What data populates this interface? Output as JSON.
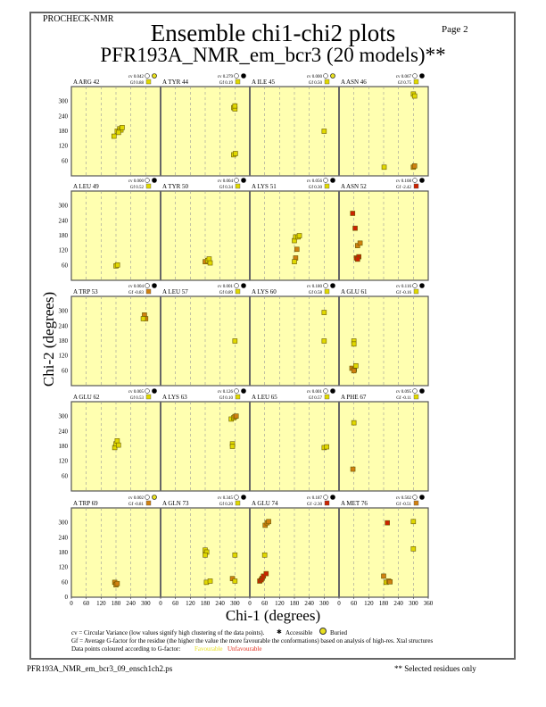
{
  "header": {
    "program": "PROCHECK-NMR",
    "page": "Page  2",
    "title": "Ensemble chi1-chi2 plots",
    "subtitle": "PFR193A_NMR_em_bcr3 (20 models)**"
  },
  "footer": {
    "filename": "PFR193A_NMR_em_bcr3_09_ensch1ch2.ps",
    "note": "** Selected residues only"
  },
  "legend": {
    "cv": "cv = Circular Variance (low values signify high clustering of the data points).",
    "accessible": "Accessible",
    "buried": "Buried",
    "gf": "Gf = Average G-factor for the residue (the higher the value the more favourable the conformations) based on analysis of high-res. Xtal structures",
    "colour": "Data points coloured according to G-factor:",
    "fav": "Favourable",
    "unfav": "Unfavourable"
  },
  "colors": {
    "y": "#e0d800",
    "o": "#d08010",
    "r": "#cc2200",
    "bg": "#ffffb0",
    "fav": "#e8e020",
    "unfav": "#e03020"
  },
  "chart_data": {
    "type": "scatter",
    "xlabel": "Chi-1 (degrees)",
    "ylabel": "Chi-2 (degrees)",
    "xlim": [
      0,
      360
    ],
    "ylim": [
      0,
      360
    ],
    "xticks": [
      "0",
      "60",
      "120",
      "180",
      "240",
      "300",
      "360"
    ],
    "yticks": [
      "0",
      "60",
      "120",
      "180",
      "240",
      "300"
    ],
    "panels": [
      {
        "label": "A ARG 42",
        "cv": "cv 0.042",
        "gf": "Gf 0.88",
        "gfc": "y",
        "buried": true,
        "pts": [
          [
            172,
            160,
            "y"
          ],
          [
            185,
            180,
            "y"
          ],
          [
            195,
            190,
            "y"
          ],
          [
            200,
            185,
            "y"
          ],
          [
            190,
            175,
            "y"
          ],
          [
            205,
            195,
            "y"
          ]
        ]
      },
      {
        "label": "A TYR 44",
        "cv": "cv 0.279",
        "gf": "Gf 0.19",
        "gfc": "y",
        "buried": false,
        "pts": [
          [
            295,
            275,
            "y"
          ],
          [
            300,
            270,
            "y"
          ],
          [
            300,
            282,
            "y"
          ],
          [
            295,
            85,
            "y"
          ],
          [
            302,
            90,
            "y"
          ]
        ]
      },
      {
        "label": "A ILE 45",
        "cv": "cv 0.000",
        "gf": "Gf 0.50",
        "gfc": "y",
        "buried": true,
        "pts": [
          [
            300,
            180,
            "y"
          ]
        ]
      },
      {
        "label": "A ASN 46",
        "cv": "cv 0.067",
        "gf": "Gf 0.75",
        "gfc": "y",
        "buried": false,
        "pts": [
          [
            300,
            330,
            "y"
          ],
          [
            305,
            322,
            "y"
          ],
          [
            182,
            35,
            "y"
          ],
          [
            300,
            35,
            "o"
          ],
          [
            305,
            40,
            "o"
          ]
        ]
      },
      {
        "label": "A LEU 49",
        "cv": "cv 0.000",
        "gf": "Gf 0.52",
        "gfc": "y",
        "buried": false,
        "pts": [
          [
            180,
            58,
            "y"
          ],
          [
            186,
            62,
            "y"
          ]
        ]
      },
      {
        "label": "A TYR 50",
        "cv": "cv 0.004",
        "gf": "Gf 0.34",
        "gfc": "y",
        "buried": false,
        "pts": [
          [
            180,
            75,
            "o"
          ],
          [
            190,
            80,
            "y"
          ],
          [
            196,
            86,
            "y"
          ],
          [
            200,
            70,
            "y"
          ]
        ]
      },
      {
        "label": "A LYS 51",
        "cv": "cv 0.056",
        "gf": "Gf 0.30",
        "gfc": "y",
        "buried": false,
        "pts": [
          [
            180,
            160,
            "y"
          ],
          [
            185,
            175,
            "y"
          ],
          [
            195,
            175,
            "y"
          ],
          [
            200,
            180,
            "y"
          ],
          [
            190,
            125,
            "o"
          ],
          [
            185,
            90,
            "o"
          ],
          [
            180,
            75,
            "y"
          ]
        ]
      },
      {
        "label": "A ASN 52",
        "cv": "cv 0.108",
        "gf": "Gf -2.42",
        "gfc": "r",
        "buried": false,
        "pts": [
          [
            55,
            270,
            "r"
          ],
          [
            65,
            210,
            "r"
          ],
          [
            75,
            140,
            "o"
          ],
          [
            85,
            150,
            "o"
          ],
          [
            70,
            90,
            "r"
          ],
          [
            80,
            95,
            "r"
          ],
          [
            75,
            85,
            "r"
          ]
        ]
      },
      {
        "label": "A TRP 53",
        "cv": "cv 0.004",
        "gf": "Gf -0.83",
        "gfc": "o",
        "buried": false,
        "pts": [
          [
            295,
            285,
            "o"
          ],
          [
            300,
            270,
            "o"
          ],
          [
            290,
            270,
            "y"
          ]
        ]
      },
      {
        "label": "A LEU 57",
        "cv": "cv 0.001",
        "gf": "Gf 0.89",
        "gfc": "y",
        "buried": false,
        "pts": [
          [
            300,
            180,
            "y"
          ]
        ]
      },
      {
        "label": "A LYS 60",
        "cv": "cv 0.180",
        "gf": "Gf 0.58",
        "gfc": "y",
        "buried": false,
        "pts": [
          [
            300,
            295,
            "y"
          ],
          [
            300,
            180,
            "y"
          ]
        ]
      },
      {
        "label": "A GLU 61",
        "cv": "cv 0.116",
        "gf": "Gf -0.16",
        "gfc": "y",
        "buried": false,
        "pts": [
          [
            60,
            180,
            "y"
          ],
          [
            60,
            168,
            "y"
          ],
          [
            52,
            70,
            "o"
          ],
          [
            62,
            65,
            "o"
          ],
          [
            68,
            80,
            "y"
          ],
          [
            60,
            60,
            "o"
          ]
        ]
      },
      {
        "label": "A GLU 62",
        "cv": "cv 0.005",
        "gf": "Gf 0.53",
        "gfc": "y",
        "buried": false,
        "pts": [
          [
            175,
            175,
            "y"
          ],
          [
            180,
            190,
            "y"
          ],
          [
            185,
            202,
            "y"
          ],
          [
            190,
            185,
            "y"
          ]
        ]
      },
      {
        "label": "A LYS 63",
        "cv": "cv 0.126",
        "gf": "Gf 0.10",
        "gfc": "y",
        "buried": false,
        "pts": [
          [
            285,
            290,
            "y"
          ],
          [
            295,
            295,
            "y"
          ],
          [
            300,
            300,
            "o"
          ],
          [
            305,
            302,
            "o"
          ],
          [
            290,
            190,
            "y"
          ],
          [
            290,
            180,
            "y"
          ]
        ]
      },
      {
        "label": "A LEU 65",
        "cv": "cv 0.001",
        "gf": "Gf 0.57",
        "gfc": "y",
        "buried": false,
        "pts": [
          [
            300,
            175,
            "y"
          ],
          [
            310,
            178,
            "y"
          ]
        ]
      },
      {
        "label": "A PHE 67",
        "cv": "cv 0.095",
        "gf": "Gf -0.11",
        "gfc": "y",
        "buried": false,
        "pts": [
          [
            60,
            275,
            "y"
          ],
          [
            56,
            88,
            "o"
          ]
        ]
      },
      {
        "label": "A TRP 69",
        "cv": "cv 0.002",
        "gf": "Gf -0.81",
        "gfc": "o",
        "buried": true,
        "pts": [
          [
            175,
            60,
            "o"
          ],
          [
            180,
            50,
            "o"
          ],
          [
            185,
            55,
            "o"
          ]
        ]
      },
      {
        "label": "A GLN 73",
        "cv": "cv 0.345",
        "gf": "Gf 0.20",
        "gfc": "y",
        "buried": false,
        "pts": [
          [
            180,
            190,
            "y"
          ],
          [
            186,
            182,
            "y"
          ],
          [
            180,
            170,
            "y"
          ],
          [
            300,
            170,
            "y"
          ],
          [
            185,
            60,
            "y"
          ],
          [
            200,
            65,
            "y"
          ],
          [
            290,
            75,
            "o"
          ],
          [
            300,
            65,
            "y"
          ]
        ]
      },
      {
        "label": "A GLU 74",
        "cv": "cv 0.187",
        "gf": "Gf -2.30",
        "gfc": "r",
        "buried": false,
        "pts": [
          [
            62,
            290,
            "o"
          ],
          [
            70,
            300,
            "o"
          ],
          [
            76,
            305,
            "o"
          ],
          [
            60,
            170,
            "y"
          ],
          [
            40,
            65,
            "r"
          ],
          [
            46,
            70,
            "r"
          ],
          [
            50,
            76,
            "r"
          ],
          [
            55,
            85,
            "r"
          ],
          [
            66,
            95,
            "r"
          ]
        ]
      },
      {
        "label": "A MET 76",
        "cv": "cv 0.502",
        "gf": "Gf -0.51",
        "gfc": "o",
        "buried": false,
        "pts": [
          [
            195,
            300,
            "r"
          ],
          [
            300,
            305,
            "y"
          ],
          [
            300,
            195,
            "y"
          ],
          [
            180,
            85,
            "o"
          ],
          [
            190,
            60,
            "y"
          ],
          [
            200,
            65,
            "o"
          ],
          [
            206,
            62,
            "o"
          ]
        ]
      }
    ]
  }
}
